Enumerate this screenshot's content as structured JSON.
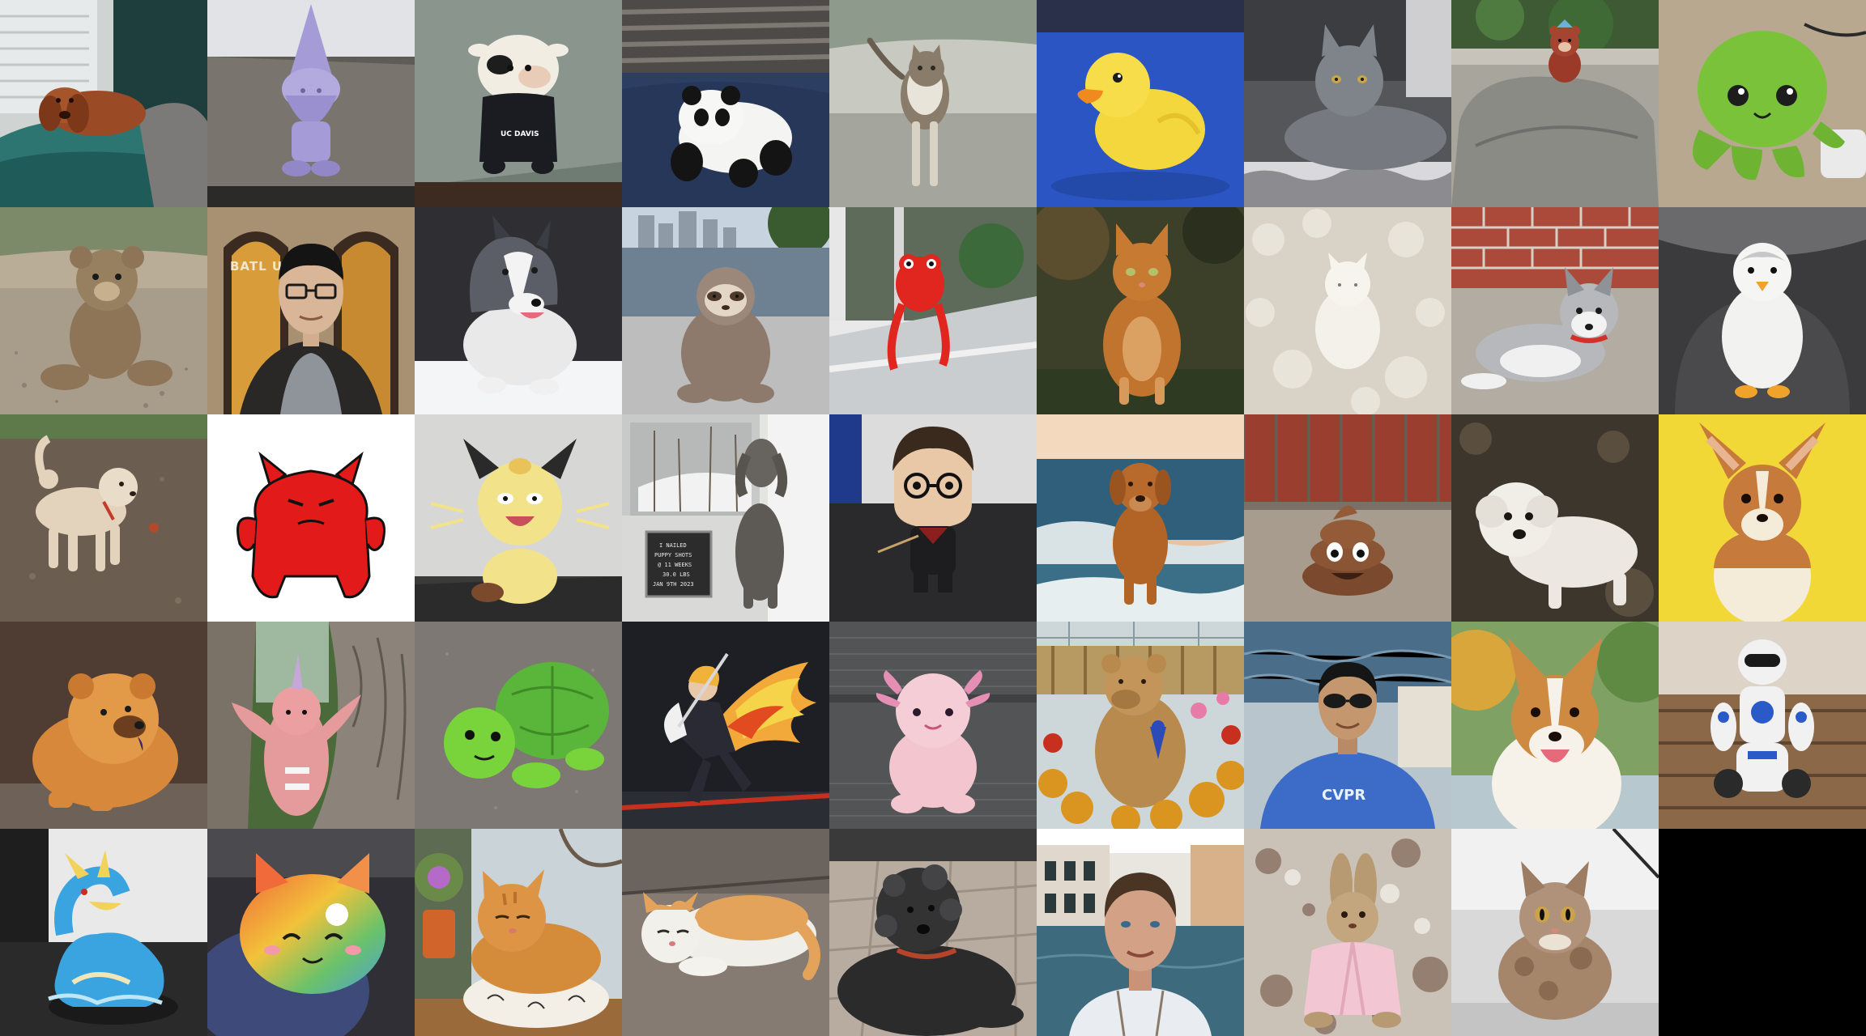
{
  "mosaic": {
    "columns": 9,
    "rows": 5,
    "tiles": [
      {
        "subject": "dachshund-on-sofa",
        "colors": {
          "bg": "#3c5b5a",
          "main": "#9b4a26"
        }
      },
      {
        "subject": "purple-gnome-figurine",
        "colors": {
          "bg": "#dcdde0",
          "main": "#a59bd6"
        }
      },
      {
        "subject": "ucdavis-cow-plush",
        "colors": {
          "bg": "#5e6e64",
          "main": "#f2ede3"
        }
      },
      {
        "subject": "panda-plush",
        "colors": {
          "bg": "#2a3d63",
          "main": "#f4f4f2"
        }
      },
      {
        "subject": "tabby-cat-walking",
        "colors": {
          "bg": "#a6a9a1",
          "main": "#8a7c6a"
        }
      },
      {
        "subject": "rubber-duck",
        "colors": {
          "bg": "#2c55c4",
          "main": "#f4d73c"
        }
      },
      {
        "subject": "grey-cat-lying",
        "colors": {
          "bg": "#6a6a6c",
          "main": "#767a80"
        }
      },
      {
        "subject": "small-bear-on-rock",
        "colors": {
          "bg": "#8b8b86",
          "main": "#9b3a28"
        }
      },
      {
        "subject": "green-octopus-plush",
        "colors": {
          "bg": "#b8a88f",
          "main": "#7bc23b"
        }
      },
      {
        "subject": "teddy-bear-on-gravel",
        "colors": {
          "bg": "#a89d8b",
          "main": "#8e7558"
        }
      },
      {
        "subject": "man-with-glasses",
        "colors": {
          "bg": "#6b5340",
          "main": "#d8b697"
        },
        "text": "BATL  UDI"
      },
      {
        "subject": "border-collie-dog",
        "colors": {
          "bg": "#2f2f33",
          "main": "#e9e9ea"
        }
      },
      {
        "subject": "sloth-plush-by-river",
        "colors": {
          "bg": "#8da0ae",
          "main": "#8d7a6c"
        }
      },
      {
        "subject": "red-monster-plush-window",
        "colors": {
          "bg": "#7f8a82",
          "main": "#e0261f"
        }
      },
      {
        "subject": "orange-cat-sitting",
        "colors": {
          "bg": "#3c4029",
          "main": "#c0742d"
        }
      },
      {
        "subject": "white-figurine-on-fur",
        "colors": {
          "bg": "#d8d2c7",
          "main": "#f4f1ea"
        }
      },
      {
        "subject": "husky-plush-by-brick",
        "colors": {
          "bg": "#ab4a3a",
          "main": "#b6b8bc"
        }
      },
      {
        "subject": "penguin-plush",
        "colors": {
          "bg": "#3b3b3e",
          "main": "#f2f2f0"
        }
      },
      {
        "subject": "poodle-on-dirt",
        "colors": {
          "bg": "#6b5e50",
          "main": "#e3d3bc"
        }
      },
      {
        "subject": "red-devil-cartoon",
        "colors": {
          "bg": "#ffffff",
          "main": "#e21a1a"
        }
      },
      {
        "subject": "meowth-plush",
        "colors": {
          "bg": "#d7d7d6",
          "main": "#f2e28a"
        }
      },
      {
        "subject": "grey-dog-with-sign",
        "colors": {
          "bg": "#9ea1a0",
          "main": "#5d5a55"
        },
        "sign_lines": [
          "I NAILED",
          "PUPPY SHOTS",
          "@ 11 WEEKS",
          "30.0 LBS",
          "JAN 9TH 2023"
        ]
      },
      {
        "subject": "funko-pop-figure",
        "colors": {
          "bg": "#dcdcdc",
          "main": "#2a2a2e"
        }
      },
      {
        "subject": "retriever-on-beach",
        "colors": {
          "bg": "#2f5f7a",
          "main": "#b26426"
        }
      },
      {
        "subject": "poop-emoji-figure",
        "colors": {
          "bg": "#9a3e30",
          "main": "#7b4a2e"
        }
      },
      {
        "subject": "white-poodle",
        "colors": {
          "bg": "#3d362d",
          "main": "#ece8e1"
        }
      },
      {
        "subject": "corgi-puppy-yellow",
        "colors": {
          "bg": "#f1d836",
          "main": "#c67a3b"
        }
      },
      {
        "subject": "chow-chow-dog",
        "colors": {
          "bg": "#4f3d33",
          "main": "#d8883a"
        }
      },
      {
        "subject": "pink-narwhal-plush-on-tree",
        "colors": {
          "bg": "#7a7266",
          "main": "#e59a9b"
        }
      },
      {
        "subject": "green-turtle-plush",
        "colors": {
          "bg": "#7d7873",
          "main": "#59b63a"
        }
      },
      {
        "subject": "anime-figure-flames",
        "colors": {
          "bg": "#1e1f25",
          "main": "#f2a93a"
        }
      },
      {
        "subject": "pink-axolotl-plush",
        "colors": {
          "bg": "#525456",
          "main": "#f3c6cf"
        }
      },
      {
        "subject": "bear-statue-flowers",
        "colors": {
          "bg": "#b69a62",
          "main": "#b88a4d"
        }
      },
      {
        "subject": "man-sunglasses-boat",
        "colors": {
          "bg": "#4a6e8a",
          "main": "#3d6bc8"
        },
        "text": "CVPR"
      },
      {
        "subject": "corgi-smiling",
        "colors": {
          "bg": "#7fa264",
          "main": "#cf8a41"
        }
      },
      {
        "subject": "white-robot-toy",
        "colors": {
          "bg": "#8a6848",
          "main": "#f1f1f2"
        }
      },
      {
        "subject": "gyarados-figure",
        "colors": {
          "bg": "#1e1e1e",
          "main": "#3aa4e0"
        }
      },
      {
        "subject": "rainbow-cat-plush",
        "colors": {
          "bg": "#2f2f35",
          "main": "#ee8a3a"
        }
      },
      {
        "subject": "orange-cat-in-basket",
        "colors": {
          "bg": "#5e6b53",
          "main": "#d48b3a"
        }
      },
      {
        "subject": "orange-white-cat-lying",
        "colors": {
          "bg": "#5a5450",
          "main": "#f0eee8"
        }
      },
      {
        "subject": "black-shaggy-dog",
        "colors": {
          "bg": "#b8aca0",
          "main": "#2b2b2c"
        }
      },
      {
        "subject": "man-in-venice",
        "colors": {
          "bg": "#3d6a7d",
          "main": "#d3a286"
        }
      },
      {
        "subject": "bunny-plush-pink-robe",
        "colors": {
          "bg": "#cac2b6",
          "main": "#f2c6d2"
        }
      },
      {
        "subject": "fluffy-kitten",
        "colors": {
          "bg": "#d9d9d9",
          "main": "#a5866b"
        }
      },
      {
        "subject": "empty",
        "colors": {
          "bg": "#000000",
          "main": "#000000"
        }
      }
    ]
  }
}
